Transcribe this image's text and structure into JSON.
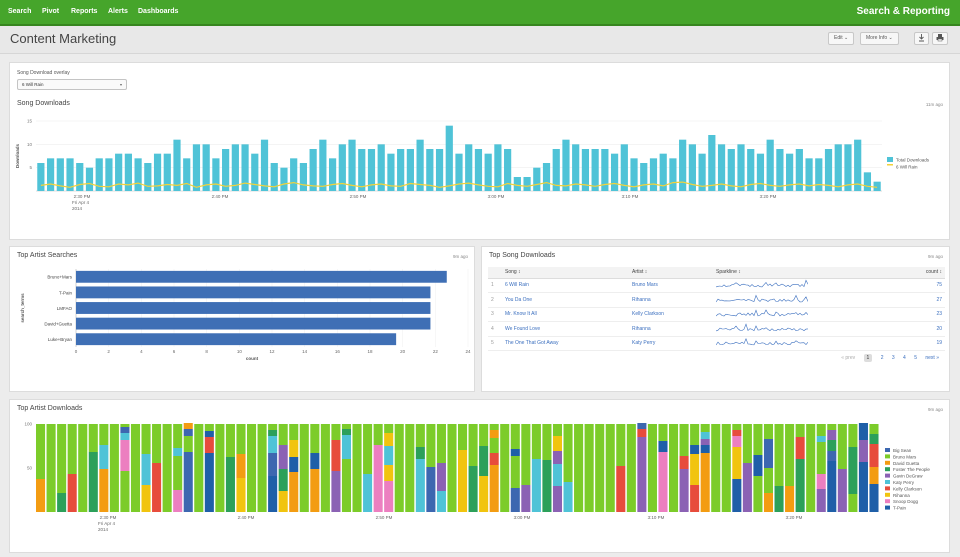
{
  "nav": {
    "items": [
      {
        "label": "Search"
      },
      {
        "label": "Pivot"
      },
      {
        "label": "Reports"
      },
      {
        "label": "Alerts"
      },
      {
        "label": "Dashboards"
      }
    ],
    "app_name": "Search & Reporting"
  },
  "dashboard": {
    "title": "Content Marketing",
    "edit_label": "Edit ⌄",
    "more_info_label": "More Info ⌄",
    "export_icon": "download-icon",
    "print_icon": "print-icon"
  },
  "overlay_input": {
    "label": "Song Download overlay",
    "value": "6 Will Rain"
  },
  "colors": {
    "nav_green": "#46a52b",
    "bar_teal": "#4fc3d7",
    "overlay_yellow": "#f2d23a",
    "bar_blue": "#3f6fb5",
    "link_blue": "#3b6fbf"
  },
  "song_downloads": {
    "title": "Song Downloads",
    "timestamp": "11m ago",
    "chart_data": {
      "type": "bar",
      "ylabel": "Downloads",
      "ylim": [
        0,
        15
      ],
      "yticks": [
        "15",
        "10",
        "5"
      ],
      "xticks": [
        {
          "label": "2:30 PM",
          "sub": [
            "Fri Apr 4",
            "2014"
          ]
        },
        {
          "label": "2:40 PM"
        },
        {
          "label": "2:50 PM"
        },
        {
          "label": "3:00 PM"
        },
        {
          "label": "3:10 PM"
        },
        {
          "label": "3:20 PM"
        }
      ],
      "series": [
        {
          "name": "Total Downloads",
          "color": "#4fc3d7",
          "values": [
            6,
            7,
            7,
            7,
            6,
            5,
            7,
            7,
            8,
            8,
            7,
            6,
            8,
            8,
            11,
            7,
            10,
            10,
            7,
            9,
            10,
            10,
            8,
            11,
            6,
            5,
            7,
            6,
            9,
            11,
            7,
            10,
            11,
            9,
            9,
            10,
            8,
            9,
            9,
            11,
            9,
            9,
            14,
            8,
            10,
            9,
            8,
            10,
            9,
            3,
            3,
            5,
            6,
            9,
            11,
            10,
            9,
            9,
            9,
            8,
            10,
            7,
            6,
            7,
            8,
            7,
            11,
            10,
            8,
            12,
            10,
            9,
            10,
            9,
            8,
            11,
            9,
            8,
            9,
            7,
            7,
            9,
            10,
            10,
            11,
            4,
            2
          ]
        },
        {
          "name": "6 Will Rain",
          "color": "#f2d23a",
          "values": [
            1.2,
            1.5,
            1.1,
            0.8,
            1.4,
            1.6,
            1.0,
            0.9,
            1.5,
            1.3,
            1.7,
            1.0,
            1.1,
            1.4,
            1.2,
            1.6,
            0.8,
            1.3,
            1.5,
            1.0,
            1.2,
            1.7,
            1.4,
            1.1,
            0.9,
            1.5,
            1.8,
            1.3,
            1.1,
            1.0,
            1.4,
            1.6,
            1.2,
            0.9,
            1.3,
            1.5,
            1.1,
            1.0,
            1.6,
            1.4,
            1.2,
            0.8,
            1.1,
            1.5,
            1.7,
            1.3,
            1.0,
            0.9,
            1.6,
            1.2,
            1.0,
            1.4,
            1.8,
            1.2,
            1.1,
            1.5,
            1.3,
            1.0,
            1.4,
            1.6,
            1.2,
            0.9,
            1.3,
            1.5,
            1.1,
            1.8,
            1.9,
            1.4,
            1.0,
            1.2,
            1.5,
            1.1,
            0.9,
            1.4,
            1.6,
            1.2,
            1.0,
            1.3,
            1.5,
            1.1,
            1.4,
            1.2,
            0.9,
            1.3,
            1.5,
            1.0,
            0.8
          ]
        }
      ],
      "legend": "right"
    }
  },
  "artist_searches": {
    "title": "Top Artist Searches",
    "timestamp": "9m ago",
    "chart_data": {
      "type": "bar",
      "orientation": "horizontal",
      "categories": [
        "Bruno+Mars",
        "T-Pain",
        "LMFAO",
        "David+Guetta",
        "Luke+Bryan"
      ],
      "values": [
        22.7,
        21.7,
        21.7,
        21.7,
        19.6
      ],
      "xlim": [
        0,
        24
      ],
      "xticks": [
        "0",
        "2",
        "4",
        "6",
        "8",
        "10",
        "12",
        "14",
        "16",
        "18",
        "20",
        "22",
        "24"
      ],
      "xlabel": "count",
      "ylabel": "search_terms",
      "color": "#3f6fb5"
    }
  },
  "song_table": {
    "title": "Top Song Downloads",
    "timestamp": "9m ago",
    "columns": [
      "Song ↕",
      "Artist ↕",
      "Sparkline ↕",
      "count ↕"
    ],
    "rows": [
      {
        "idx": "1",
        "song": "6 Will Rain",
        "artist": "Bruno Mars",
        "count": "75"
      },
      {
        "idx": "2",
        "song": "You Da One",
        "artist": "Rihanna",
        "count": "27"
      },
      {
        "idx": "3",
        "song": "Mr. Know It All",
        "artist": "Kelly Clarkson",
        "count": "23"
      },
      {
        "idx": "4",
        "song": "We Found Love",
        "artist": "Rihanna",
        "count": "20"
      },
      {
        "idx": "5",
        "song": "The One That Got Away",
        "artist": "Katy Perry",
        "count": "19"
      }
    ],
    "pager": {
      "prev": "« prev",
      "pages": [
        "1",
        "2",
        "3",
        "4",
        "5"
      ],
      "next": "next »"
    }
  },
  "artist_downloads": {
    "title": "Top Artist Downloads",
    "timestamp": "9m ago",
    "chart_data": {
      "type": "bar",
      "stacked": true,
      "percent": true,
      "ylim": [
        0,
        100
      ],
      "yticks": [
        "100",
        "50"
      ],
      "xticks": [
        {
          "label": "2:30 PM",
          "sub": [
            "Fri Apr 4",
            "2014"
          ]
        },
        {
          "label": "2:40 PM"
        },
        {
          "label": "2:50 PM"
        },
        {
          "label": "3:00 PM"
        },
        {
          "label": "3:10 PM"
        },
        {
          "label": "3:20 PM"
        }
      ],
      "series": [
        {
          "name": "Big Sean",
          "color": "#3d67b0"
        },
        {
          "name": "Bruno Mars",
          "color": "#7ccc2a"
        },
        {
          "name": "David Guetta",
          "color": "#f39c12"
        },
        {
          "name": "Foster The People",
          "color": "#2ca05a"
        },
        {
          "name": "Gavin DeGraw",
          "color": "#8b62b4"
        },
        {
          "name": "Katy Perry",
          "color": "#4fc3d7"
        },
        {
          "name": "Kelly Clarkson",
          "color": "#e74c3c"
        },
        {
          "name": "Rihanna",
          "color": "#f1c40f"
        },
        {
          "name": "Snoop Dogg",
          "color": "#ec7fc0"
        },
        {
          "name": "T-Pain",
          "color": "#1f5fa8"
        }
      ],
      "legend": "right"
    }
  }
}
